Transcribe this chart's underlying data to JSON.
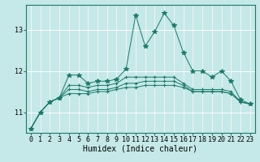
{
  "title": "",
  "xlabel": "Humidex (Indice chaleur)",
  "ylabel": "",
  "background_color": "#c5e8e8",
  "grid_color": "#ffffff",
  "line_color": "#1a7a6a",
  "x_values": [
    0,
    1,
    2,
    3,
    4,
    5,
    6,
    7,
    8,
    9,
    10,
    11,
    12,
    13,
    14,
    15,
    16,
    17,
    18,
    19,
    20,
    21,
    22,
    23
  ],
  "series": [
    [
      10.6,
      11.0,
      11.25,
      11.35,
      11.9,
      11.9,
      11.7,
      11.75,
      11.75,
      11.8,
      12.05,
      13.35,
      12.6,
      12.95,
      13.4,
      13.1,
      12.45,
      12.0,
      12.0,
      11.85,
      12.0,
      11.75,
      11.3,
      11.2
    ],
    [
      10.6,
      11.0,
      11.25,
      11.35,
      11.65,
      11.65,
      11.6,
      11.65,
      11.65,
      11.7,
      11.85,
      11.85,
      11.85,
      11.85,
      11.85,
      11.85,
      11.7,
      11.55,
      11.55,
      11.55,
      11.55,
      11.5,
      11.25,
      11.2
    ],
    [
      10.6,
      11.0,
      11.25,
      11.35,
      11.55,
      11.55,
      11.5,
      11.55,
      11.55,
      11.6,
      11.7,
      11.7,
      11.75,
      11.75,
      11.75,
      11.75,
      11.65,
      11.5,
      11.5,
      11.5,
      11.5,
      11.45,
      11.25,
      11.2
    ],
    [
      10.6,
      11.0,
      11.25,
      11.35,
      11.45,
      11.45,
      11.45,
      11.5,
      11.5,
      11.55,
      11.6,
      11.6,
      11.65,
      11.65,
      11.65,
      11.65,
      11.6,
      11.5,
      11.5,
      11.5,
      11.5,
      11.45,
      11.25,
      11.2
    ]
  ],
  "ylim": [
    10.5,
    13.6
  ],
  "yticks": [
    11,
    12,
    13
  ],
  "xticks": [
    0,
    1,
    2,
    3,
    4,
    5,
    6,
    7,
    8,
    9,
    10,
    11,
    12,
    13,
    14,
    15,
    16,
    17,
    18,
    19,
    20,
    21,
    22,
    23
  ],
  "xlabel_fontsize": 7,
  "tick_fontsize": 6,
  "marker_sizes": [
    4,
    3,
    3,
    3
  ],
  "marker_styles": [
    "*",
    "+",
    "+",
    "+"
  ]
}
